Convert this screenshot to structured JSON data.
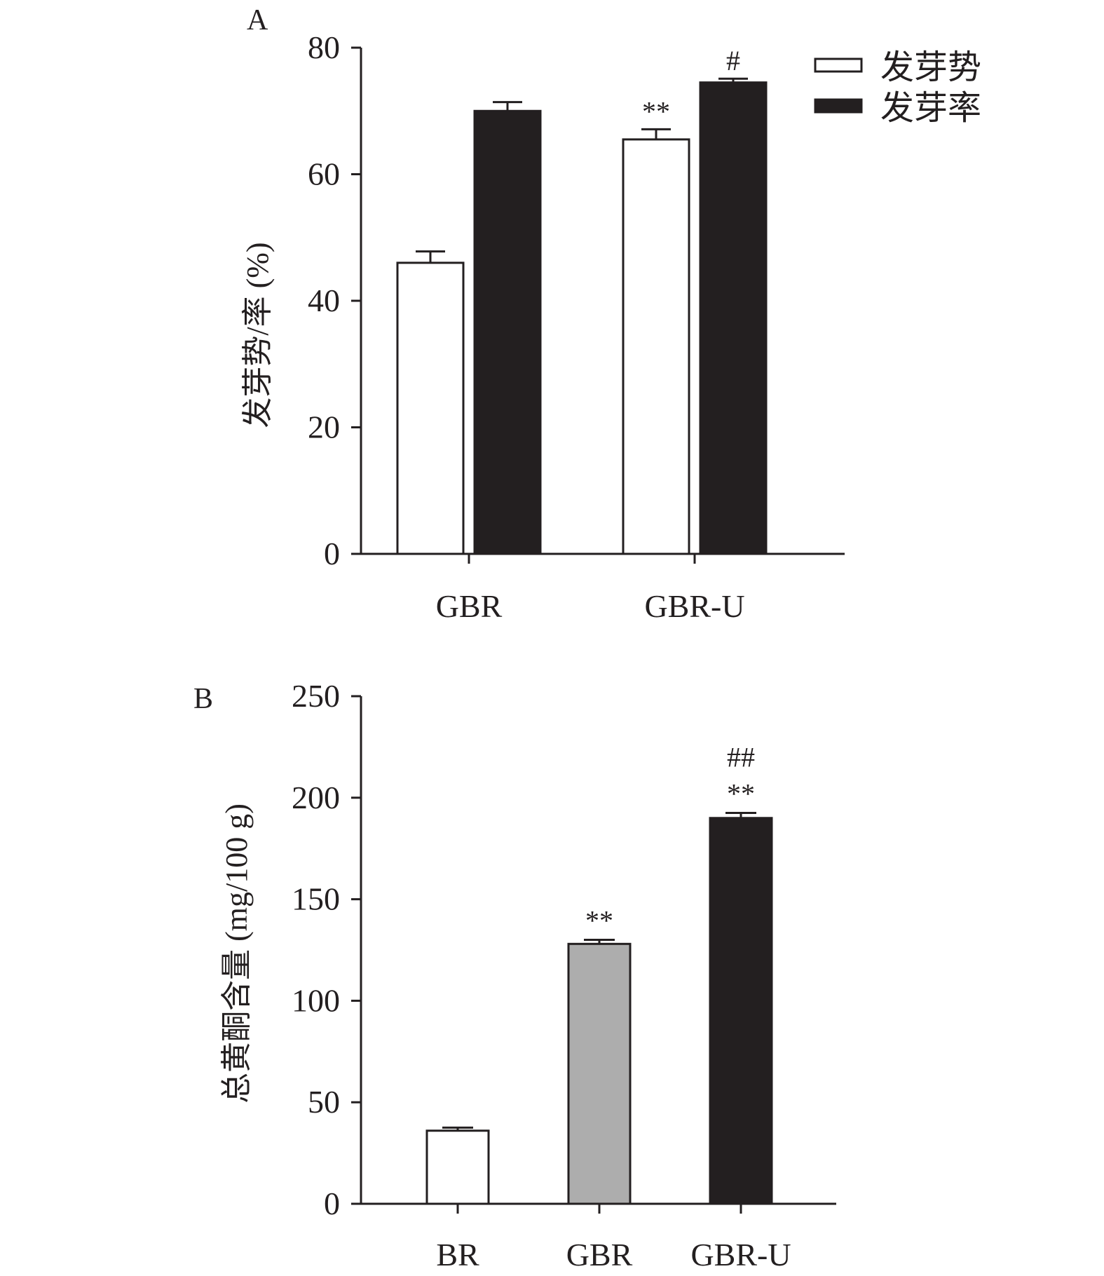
{
  "chart_data": [
    {
      "type": "bar",
      "panel_label": "A",
      "categories": [
        "GBR",
        "GBR-U"
      ],
      "ylabel": "发芽势/率 (%)",
      "xlabel": "",
      "ylim": [
        0,
        80
      ],
      "yticks": [
        "0",
        "20",
        "40",
        "60",
        "80"
      ],
      "legend_position": "top-right",
      "series": [
        {
          "name": "发芽势",
          "values": [
            46,
            65.5
          ],
          "errors": [
            1.8,
            1.6
          ],
          "color": "#ffffff",
          "annotations": [
            "",
            "**"
          ]
        },
        {
          "name": "发芽率",
          "values": [
            70,
            74.5
          ],
          "errors": [
            1.4,
            0.6
          ],
          "color": "#231f20",
          "annotations": [
            "",
            "#"
          ]
        }
      ]
    },
    {
      "type": "bar",
      "panel_label": "B",
      "categories": [
        "BR",
        "GBR",
        "GBR-U"
      ],
      "ylabel": "总黄酮含量 (mg/100 g)",
      "xlabel": "",
      "ylim": [
        0,
        250
      ],
      "yticks": [
        "0",
        "50",
        "100",
        "150",
        "200",
        "250"
      ],
      "values": [
        36,
        128,
        190
      ],
      "errors": [
        1.5,
        2.0,
        2.5
      ],
      "colors": [
        "#ffffff",
        "#adadad",
        "#231f20"
      ],
      "annotations": [
        [],
        [
          "**"
        ],
        [
          "**",
          "##"
        ]
      ]
    }
  ]
}
